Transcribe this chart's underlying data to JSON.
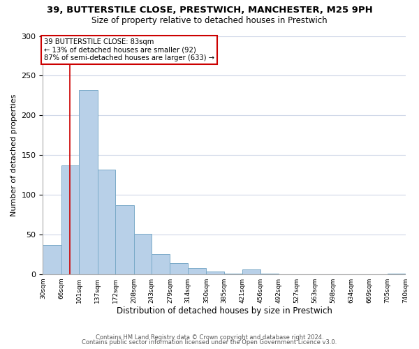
{
  "title": "39, BUTTERSTILE CLOSE, PRESTWICH, MANCHESTER, M25 9PH",
  "subtitle": "Size of property relative to detached houses in Prestwich",
  "xlabel": "Distribution of detached houses by size in Prestwich",
  "ylabel": "Number of detached properties",
  "bin_edges": [
    30,
    66,
    101,
    137,
    172,
    208,
    243,
    279,
    314,
    350,
    385,
    421,
    456,
    492,
    527,
    563,
    598,
    634,
    669,
    705,
    740
  ],
  "bar_heights": [
    37,
    137,
    232,
    132,
    87,
    51,
    25,
    14,
    8,
    3,
    1,
    6,
    1,
    0,
    0,
    0,
    0,
    0,
    0,
    1
  ],
  "bar_color": "#b8d0e8",
  "bar_edge_color": "#7aaac8",
  "vline_x": 83,
  "vline_color": "#cc0000",
  "annotation_box_color": "#cc0000",
  "annotation_line1": "39 BUTTERSTILE CLOSE: 83sqm",
  "annotation_line2": "← 13% of detached houses are smaller (92)",
  "annotation_line3": "87% of semi-detached houses are larger (633) →",
  "ylim": [
    0,
    300
  ],
  "yticks": [
    0,
    50,
    100,
    150,
    200,
    250,
    300
  ],
  "tick_labels": [
    "30sqm",
    "66sqm",
    "101sqm",
    "137sqm",
    "172sqm",
    "208sqm",
    "243sqm",
    "279sqm",
    "314sqm",
    "350sqm",
    "385sqm",
    "421sqm",
    "456sqm",
    "492sqm",
    "527sqm",
    "563sqm",
    "598sqm",
    "634sqm",
    "669sqm",
    "705sqm",
    "740sqm"
  ],
  "footnote1": "Contains HM Land Registry data © Crown copyright and database right 2024.",
  "footnote2": "Contains public sector information licensed under the Open Government Licence v3.0.",
  "bg_color": "#ffffff",
  "grid_color": "#d0d8e8"
}
